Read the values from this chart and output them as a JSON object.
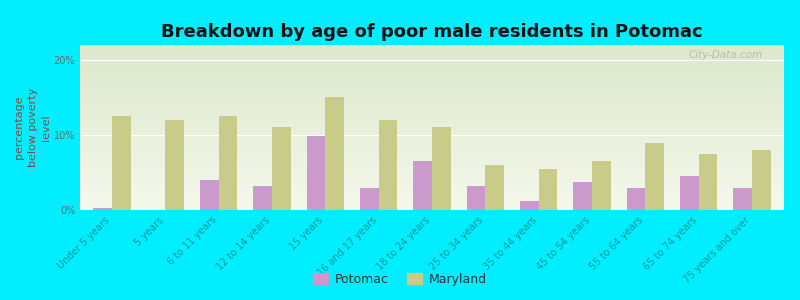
{
  "title": "Breakdown by age of poor male residents in Potomac",
  "ylabel": "percentage\nbelow poverty\nlevel",
  "categories": [
    "Under 5 years",
    "5 years",
    "6 to 11 years",
    "12 to 14 years",
    "15 years",
    "16 and 17 years",
    "18 to 24 years",
    "25 to 34 years",
    "35 to 44 years",
    "45 to 54 years",
    "55 to 64 years",
    "65 to 74 years",
    "75 years and over"
  ],
  "potomac_values": [
    0.3,
    0.0,
    4.0,
    3.2,
    9.8,
    3.0,
    6.5,
    3.2,
    1.2,
    3.8,
    3.0,
    4.5,
    3.0
  ],
  "maryland_values": [
    12.5,
    12.0,
    12.5,
    11.0,
    15.0,
    12.0,
    11.0,
    6.0,
    5.5,
    6.5,
    9.0,
    7.5,
    8.0
  ],
  "potomac_color": "#cc99cc",
  "maryland_color": "#c8cc88",
  "background_color": "#00eeff",
  "plot_bg_top": "#dde8cc",
  "plot_bg_bottom": "#f4f8ec",
  "ylim": [
    0,
    22
  ],
  "yticks": [
    0,
    10,
    20
  ],
  "ytick_labels": [
    "0%",
    "10%",
    "20%"
  ],
  "title_fontsize": 13,
  "axis_label_fontsize": 8,
  "tick_fontsize": 7,
  "xtick_color": "#009999",
  "ytick_color": "#666666",
  "ylabel_color": "#884444",
  "legend_fontsize": 9,
  "watermark_text": "City-Data.com"
}
